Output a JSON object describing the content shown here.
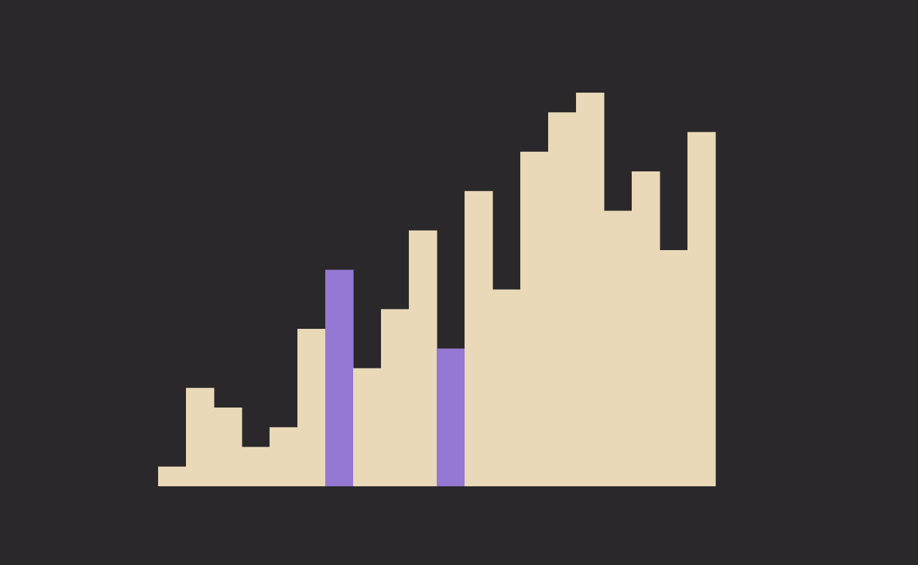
{
  "chart_data": {
    "type": "bar",
    "values": [
      1,
      5,
      4,
      2,
      3,
      8,
      11,
      6,
      9,
      13,
      7,
      15,
      10,
      17,
      19,
      20,
      14,
      16,
      12,
      18
    ],
    "highlighted_indices": [
      6,
      10
    ],
    "ylim": [
      0,
      20
    ],
    "grid": false,
    "legend": "none"
  },
  "colors": {
    "background": "#2a282a",
    "bar": "#e9d9b8",
    "highlight": "#9478d3"
  }
}
